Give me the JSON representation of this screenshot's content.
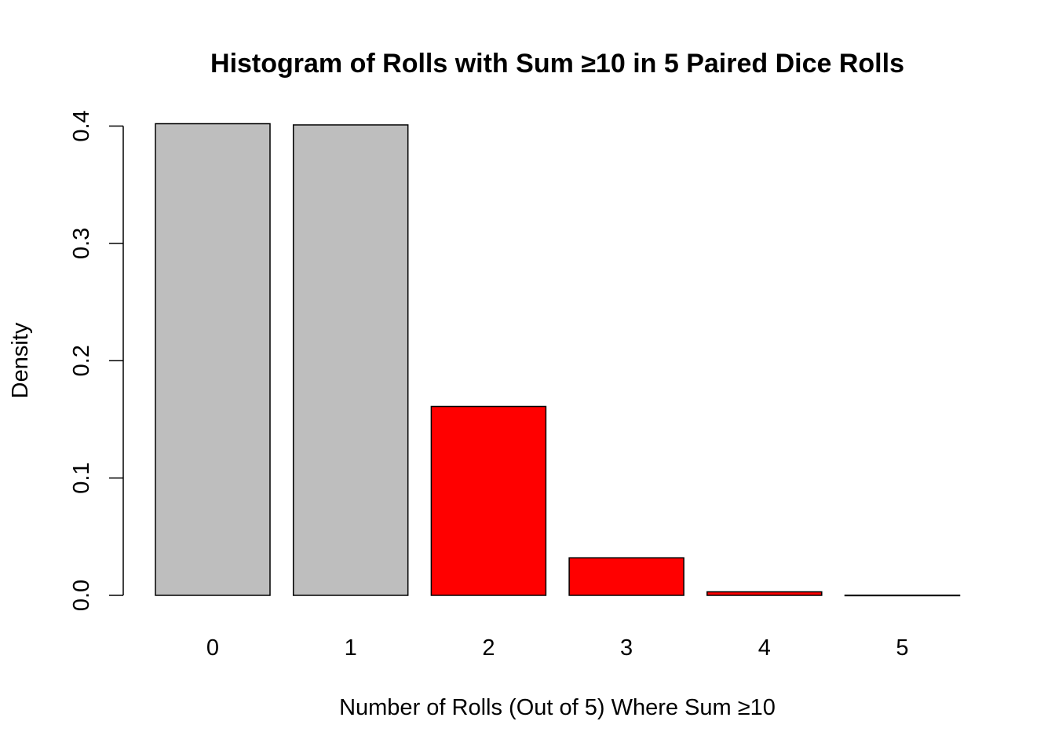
{
  "chart_data": {
    "type": "bar",
    "title": "Histogram of Rolls with Sum ≥10 in 5 Paired Dice Rolls",
    "xlabel": "Number of Rolls (Out of 5) Where Sum ≥10",
    "ylabel": "Density",
    "categories": [
      "0",
      "1",
      "2",
      "3",
      "4",
      "5"
    ],
    "values": [
      0.402,
      0.401,
      0.161,
      0.032,
      0.003,
      0.0001
    ],
    "bar_colors": [
      "#bebebe",
      "#bebebe",
      "#ff0000",
      "#ff0000",
      "#ff0000",
      "#ff0000"
    ],
    "ylim": [
      0,
      0.4
    ],
    "yticks": [
      0.0,
      0.1,
      0.2,
      0.3,
      0.4
    ],
    "ytick_labels": [
      "0.0",
      "0.1",
      "0.2",
      "0.3",
      "0.4"
    ],
    "grid": false,
    "legend": "none"
  }
}
